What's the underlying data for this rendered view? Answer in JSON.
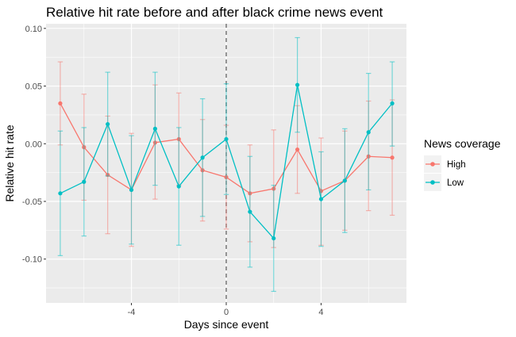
{
  "chart_data": {
    "type": "line",
    "title": "Relative hit rate before and after black crime news event",
    "xlabel": "Days since event",
    "ylabel": "Relative hit rate",
    "xlim": [
      -7.6,
      7.6
    ],
    "ylim": [
      -0.138,
      0.104
    ],
    "x_ticks": [
      -4,
      0,
      4
    ],
    "x_tick_labels": [
      "-4",
      "0",
      "4"
    ],
    "y_ticks": [
      -0.1,
      -0.05,
      0.0,
      0.05,
      0.1
    ],
    "y_tick_labels": [
      "-0.10",
      "-0.05",
      "0.00",
      "0.05",
      "0.10"
    ],
    "grid": true,
    "event_line": {
      "x": 0,
      "style": "dashed"
    },
    "legend": {
      "title": "News coverage",
      "placement": "right"
    },
    "x": [
      -7,
      -6,
      -5,
      -4,
      -3,
      -2,
      -1,
      0,
      1,
      2,
      3,
      4,
      5,
      6,
      7
    ],
    "series": [
      {
        "name": "High",
        "color": "#F8766D",
        "values": [
          0.035,
          -0.003,
          -0.027,
          -0.04,
          0.001,
          0.004,
          -0.023,
          -0.029,
          -0.043,
          -0.039,
          -0.005,
          -0.041,
          -0.032,
          -0.011,
          -0.012
        ],
        "lower": [
          -0.001,
          -0.049,
          -0.078,
          -0.089,
          -0.048,
          -0.036,
          -0.067,
          -0.074,
          -0.085,
          -0.09,
          -0.043,
          -0.088,
          -0.075,
          -0.058,
          -0.062
        ],
        "upper": [
          0.071,
          0.043,
          0.024,
          0.009,
          0.051,
          0.044,
          0.021,
          0.016,
          -0.001,
          0.012,
          0.033,
          0.005,
          0.011,
          0.037,
          0.038
        ]
      },
      {
        "name": "Low",
        "color": "#00BFC4",
        "values": [
          -0.043,
          -0.033,
          0.017,
          -0.04,
          0.013,
          -0.037,
          -0.012,
          0.004,
          -0.059,
          -0.082,
          0.051,
          -0.048,
          -0.032,
          0.01,
          0.035
        ],
        "lower": [
          -0.097,
          -0.08,
          -0.028,
          -0.087,
          -0.036,
          -0.088,
          -0.063,
          -0.044,
          -0.107,
          -0.128,
          0.01,
          -0.089,
          -0.077,
          -0.04,
          -0.002
        ],
        "upper": [
          0.011,
          0.014,
          0.062,
          0.007,
          0.062,
          0.014,
          0.039,
          0.052,
          -0.011,
          -0.036,
          0.092,
          -0.007,
          0.013,
          0.061,
          0.071
        ]
      }
    ]
  }
}
